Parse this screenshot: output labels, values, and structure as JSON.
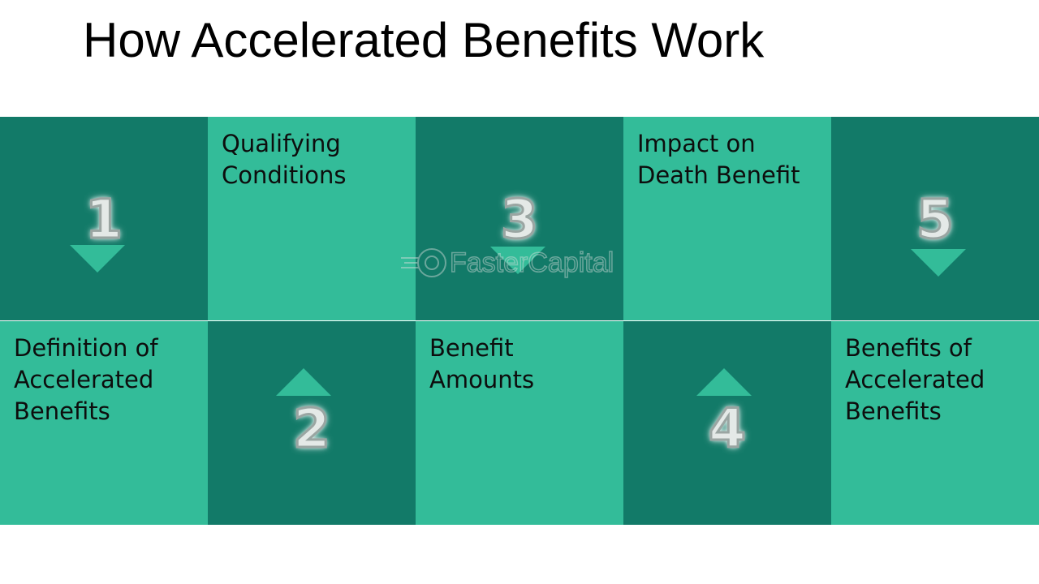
{
  "title": "How Accelerated Benefits Work",
  "steps": [
    {
      "number": "1",
      "label": "Definition of Accelerated Benefits"
    },
    {
      "number": "2",
      "label": "Qualifying Conditions"
    },
    {
      "number": "3",
      "label": "Benefit Amounts"
    },
    {
      "number": "4",
      "label": "Impact on Death Benefit"
    },
    {
      "number": "5",
      "label": "Benefits of Accelerated Benefits"
    }
  ],
  "colors": {
    "dark": "#127a68",
    "light": "#33bc99"
  },
  "watermark": "FasterCapital"
}
